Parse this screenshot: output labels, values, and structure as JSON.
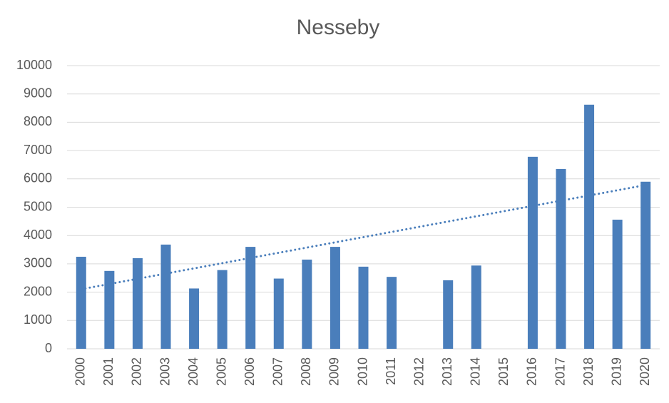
{
  "chart_data": {
    "type": "bar",
    "title": "Nesseby",
    "categories": [
      "2000",
      "2001",
      "2002",
      "2003",
      "2004",
      "2005",
      "2006",
      "2007",
      "2008",
      "2009",
      "2010",
      "2011",
      "2012",
      "2013",
      "2014",
      "2015",
      "2016",
      "2017",
      "2018",
      "2019",
      "2020"
    ],
    "values": [
      3250,
      2750,
      3200,
      3680,
      2130,
      2780,
      3600,
      2480,
      3150,
      3600,
      2900,
      2540,
      null,
      2420,
      2940,
      null,
      6780,
      6350,
      8620,
      4560,
      5900
    ],
    "color": "#4a7ebb",
    "ylim": [
      0,
      10000
    ],
    "yticks": [
      0,
      1000,
      2000,
      3000,
      4000,
      5000,
      6000,
      7000,
      8000,
      9000,
      10000
    ],
    "grid": true,
    "trendline": "linear"
  }
}
